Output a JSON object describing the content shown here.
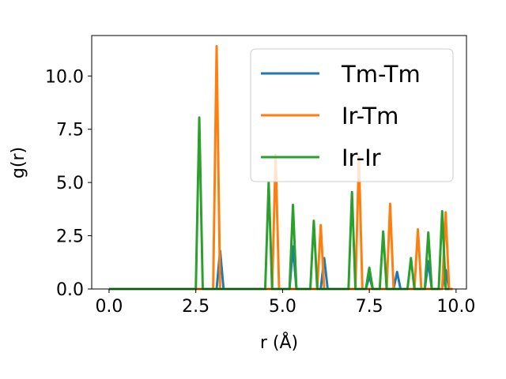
{
  "chart_data": {
    "type": "line",
    "xlabel": "r (Å)",
    "ylabel": "g(r)",
    "xlim": [
      -0.5,
      10.3
    ],
    "ylim": [
      0,
      11.9
    ],
    "x_ticks": [
      0.0,
      2.5,
      5.0,
      7.5,
      10.0
    ],
    "x_tick_labels": [
      "0.0",
      "2.5",
      "5.0",
      "7.5",
      "10.0"
    ],
    "y_ticks": [
      0.0,
      2.5,
      5.0,
      7.5,
      10.0
    ],
    "y_tick_labels": [
      "0.0",
      "2.5",
      "5.0",
      "7.5",
      "10.0"
    ],
    "grid": false,
    "legend_position": "top-right",
    "series": [
      {
        "name": "Tm-Tm",
        "color": "#1f77b4",
        "x": [
          0.0,
          3.1,
          3.2,
          3.3,
          5.2,
          5.3,
          5.4,
          6.1,
          6.2,
          6.3,
          7.4,
          7.5,
          7.6,
          8.2,
          8.3,
          8.4,
          9.1,
          9.2,
          9.3,
          9.6,
          9.7,
          9.8,
          9.9
        ],
        "y": [
          0.0,
          0.0,
          1.8,
          0.0,
          0.0,
          2.0,
          0.0,
          0.0,
          1.45,
          0.0,
          0.0,
          0.6,
          0.0,
          0.0,
          0.8,
          0.0,
          0.0,
          1.3,
          0.0,
          0.0,
          0.9,
          0.0,
          0.0
        ]
      },
      {
        "name": "Ir-Tm",
        "color": "#ff7f0e",
        "x": [
          0.0,
          3.0,
          3.1,
          3.2,
          4.7,
          4.8,
          4.9,
          6.0,
          6.1,
          6.2,
          7.1,
          7.2,
          7.3,
          8.0,
          8.1,
          8.2,
          8.8,
          8.9,
          9.0,
          9.6,
          9.7,
          9.8,
          9.9
        ],
        "y": [
          0.0,
          0.0,
          11.4,
          0.0,
          0.0,
          6.3,
          0.0,
          0.0,
          3.0,
          0.0,
          0.0,
          6.2,
          0.0,
          0.0,
          4.0,
          0.0,
          0.0,
          2.8,
          0.0,
          0.0,
          3.6,
          0.0,
          0.0
        ]
      },
      {
        "name": "Ir-Ir",
        "color": "#2ca02c",
        "x": [
          0.0,
          2.5,
          2.6,
          2.7,
          4.5,
          4.6,
          4.7,
          5.2,
          5.3,
          5.4,
          5.8,
          5.9,
          6.0,
          6.9,
          7.0,
          7.1,
          7.4,
          7.5,
          7.6,
          7.8,
          7.9,
          8.0,
          8.6,
          8.7,
          8.8,
          9.1,
          9.2,
          9.3,
          9.5,
          9.6,
          9.7,
          9.8
        ],
        "y": [
          0.0,
          0.0,
          8.05,
          0.0,
          0.0,
          5.0,
          0.0,
          0.0,
          3.95,
          0.0,
          0.0,
          3.2,
          0.0,
          0.0,
          4.55,
          0.0,
          0.0,
          1.0,
          0.0,
          0.0,
          2.7,
          0.0,
          0.0,
          1.45,
          0.0,
          0.0,
          2.65,
          0.0,
          0.0,
          3.65,
          0.0,
          0.0
        ]
      }
    ]
  }
}
